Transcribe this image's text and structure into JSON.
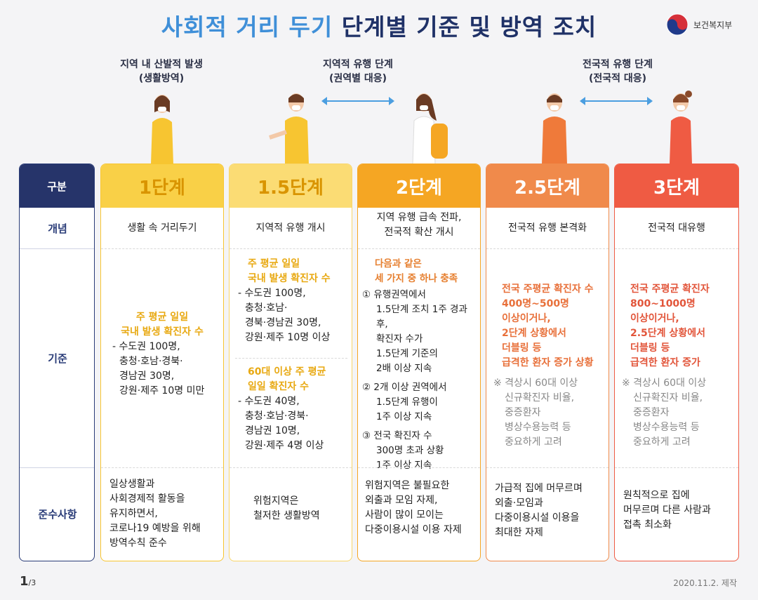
{
  "title": {
    "part1": "사회적 거리 두기",
    "part2": "단계별 기준 및 방역 조치"
  },
  "ministry": "보건복지부",
  "phases": {
    "local": {
      "line1": "지역 내 산발적 발생",
      "line2": "(생활방역)"
    },
    "regional": {
      "line1": "지역적 유행 단계",
      "line2": "(권역별 대응)"
    },
    "national": {
      "line1": "전국적 유행 단계",
      "line2": "(전국적 대응)"
    }
  },
  "row_labels": {
    "header": "구분",
    "concept": "개념",
    "criteria": "기준",
    "compliance": "준수사항"
  },
  "levels": [
    {
      "name": "1단계",
      "color": "#f7c531",
      "concept": "생활 속 거리두기",
      "criteria_heading": [
        "주 평균 일일",
        "국내 발생 확진자 수"
      ],
      "criteria_lines": [
        "- 수도권 100명,",
        "  충청·호남·경북·",
        "  경남권 30명,",
        "  강원·제주 10명 미만"
      ],
      "compliance": [
        "일상생활과",
        "사회경제적 활동을",
        "유지하면서,",
        "코로나19 예방을 위해",
        "방역수칙 준수"
      ]
    },
    {
      "name": "1.5단계",
      "color": "#f9d66a",
      "concept": "지역적 유행 개시",
      "criteria_heading": [
        "주 평균 일일",
        "국내 발생 확진자 수"
      ],
      "criteria_lines": [
        "- 수도권 100명,",
        "  충청·호남·",
        "  경북·경남권 30명,",
        "  강원·제주 10명 이상"
      ],
      "criteria2_heading": [
        "60대 이상 주 평균",
        "일일 확진자 수"
      ],
      "criteria2_lines": [
        "- 수도권 40명,",
        "  충청·호남·경북·",
        "  경남권 10명,",
        "  강원·제주 4명 이상"
      ],
      "compliance": [
        "위험지역은",
        "철저한 생활방역"
      ]
    },
    {
      "name": "2단계",
      "color": "#f5a623",
      "concept": [
        "지역 유행 급속 전파,",
        "전국적 확산 개시"
      ],
      "criteria_heading": [
        "다음과 같은",
        "세 가지 중 하나 충족"
      ],
      "criteria_lines": [
        "① 유행권역에서",
        "   1.5단계 조치 1주 경과 후,",
        "   확진자 수가",
        "   1.5단계 기준의",
        "   2배 이상 지속",
        "② 2개 이상 권역에서",
        "   1.5단계 유행이",
        "   1주 이상 지속",
        "③ 전국 확진자 수",
        "   300명 초과 상황",
        "   1주 이상 지속"
      ],
      "compliance": [
        "위험지역은 불필요한",
        "외출과 모임 자제,",
        "사람이 많이 모이는",
        "다중이용시설 이용 자제"
      ]
    },
    {
      "name": "2.5단계",
      "color": "#f08a4b",
      "concept": "전국적 유행 본격화",
      "criteria_heading": [
        "전국 주평균 확진자 수",
        "400명~500명",
        "이상이거나,",
        "2단계 상황에서",
        "더블링 등",
        "급격한 환자 증가 상황"
      ],
      "criteria_note": [
        "※ 격상시 60대 이상",
        "   신규확진자 비율,",
        "   중증환자",
        "   병상수용능력 등",
        "   중요하게 고려"
      ],
      "compliance": [
        "가급적 집에 머무르며",
        "외출·모임과",
        "다중이용시설 이용을",
        "최대한 자제"
      ]
    },
    {
      "name": "3단계",
      "color": "#ef5b43",
      "concept": "전국적 대유행",
      "criteria_heading": [
        "전국 주평균 확진자",
        "800~1000명",
        "이상이거나,",
        "2.5단계 상황에서",
        "더블링 등",
        "급격한 환자 증가"
      ],
      "criteria_note": [
        "※ 격상시 60대 이상",
        "   신규확진자 비율,",
        "   중증환자",
        "   병상수용능력 등",
        "   중요하게 고려"
      ],
      "compliance": [
        "원칙적으로 집에",
        "머무르며 다른 사람과",
        "접촉 최소화"
      ]
    }
  ],
  "footer": {
    "page": "1",
    "total": "/3",
    "date": "2020.11.2. 제작"
  }
}
